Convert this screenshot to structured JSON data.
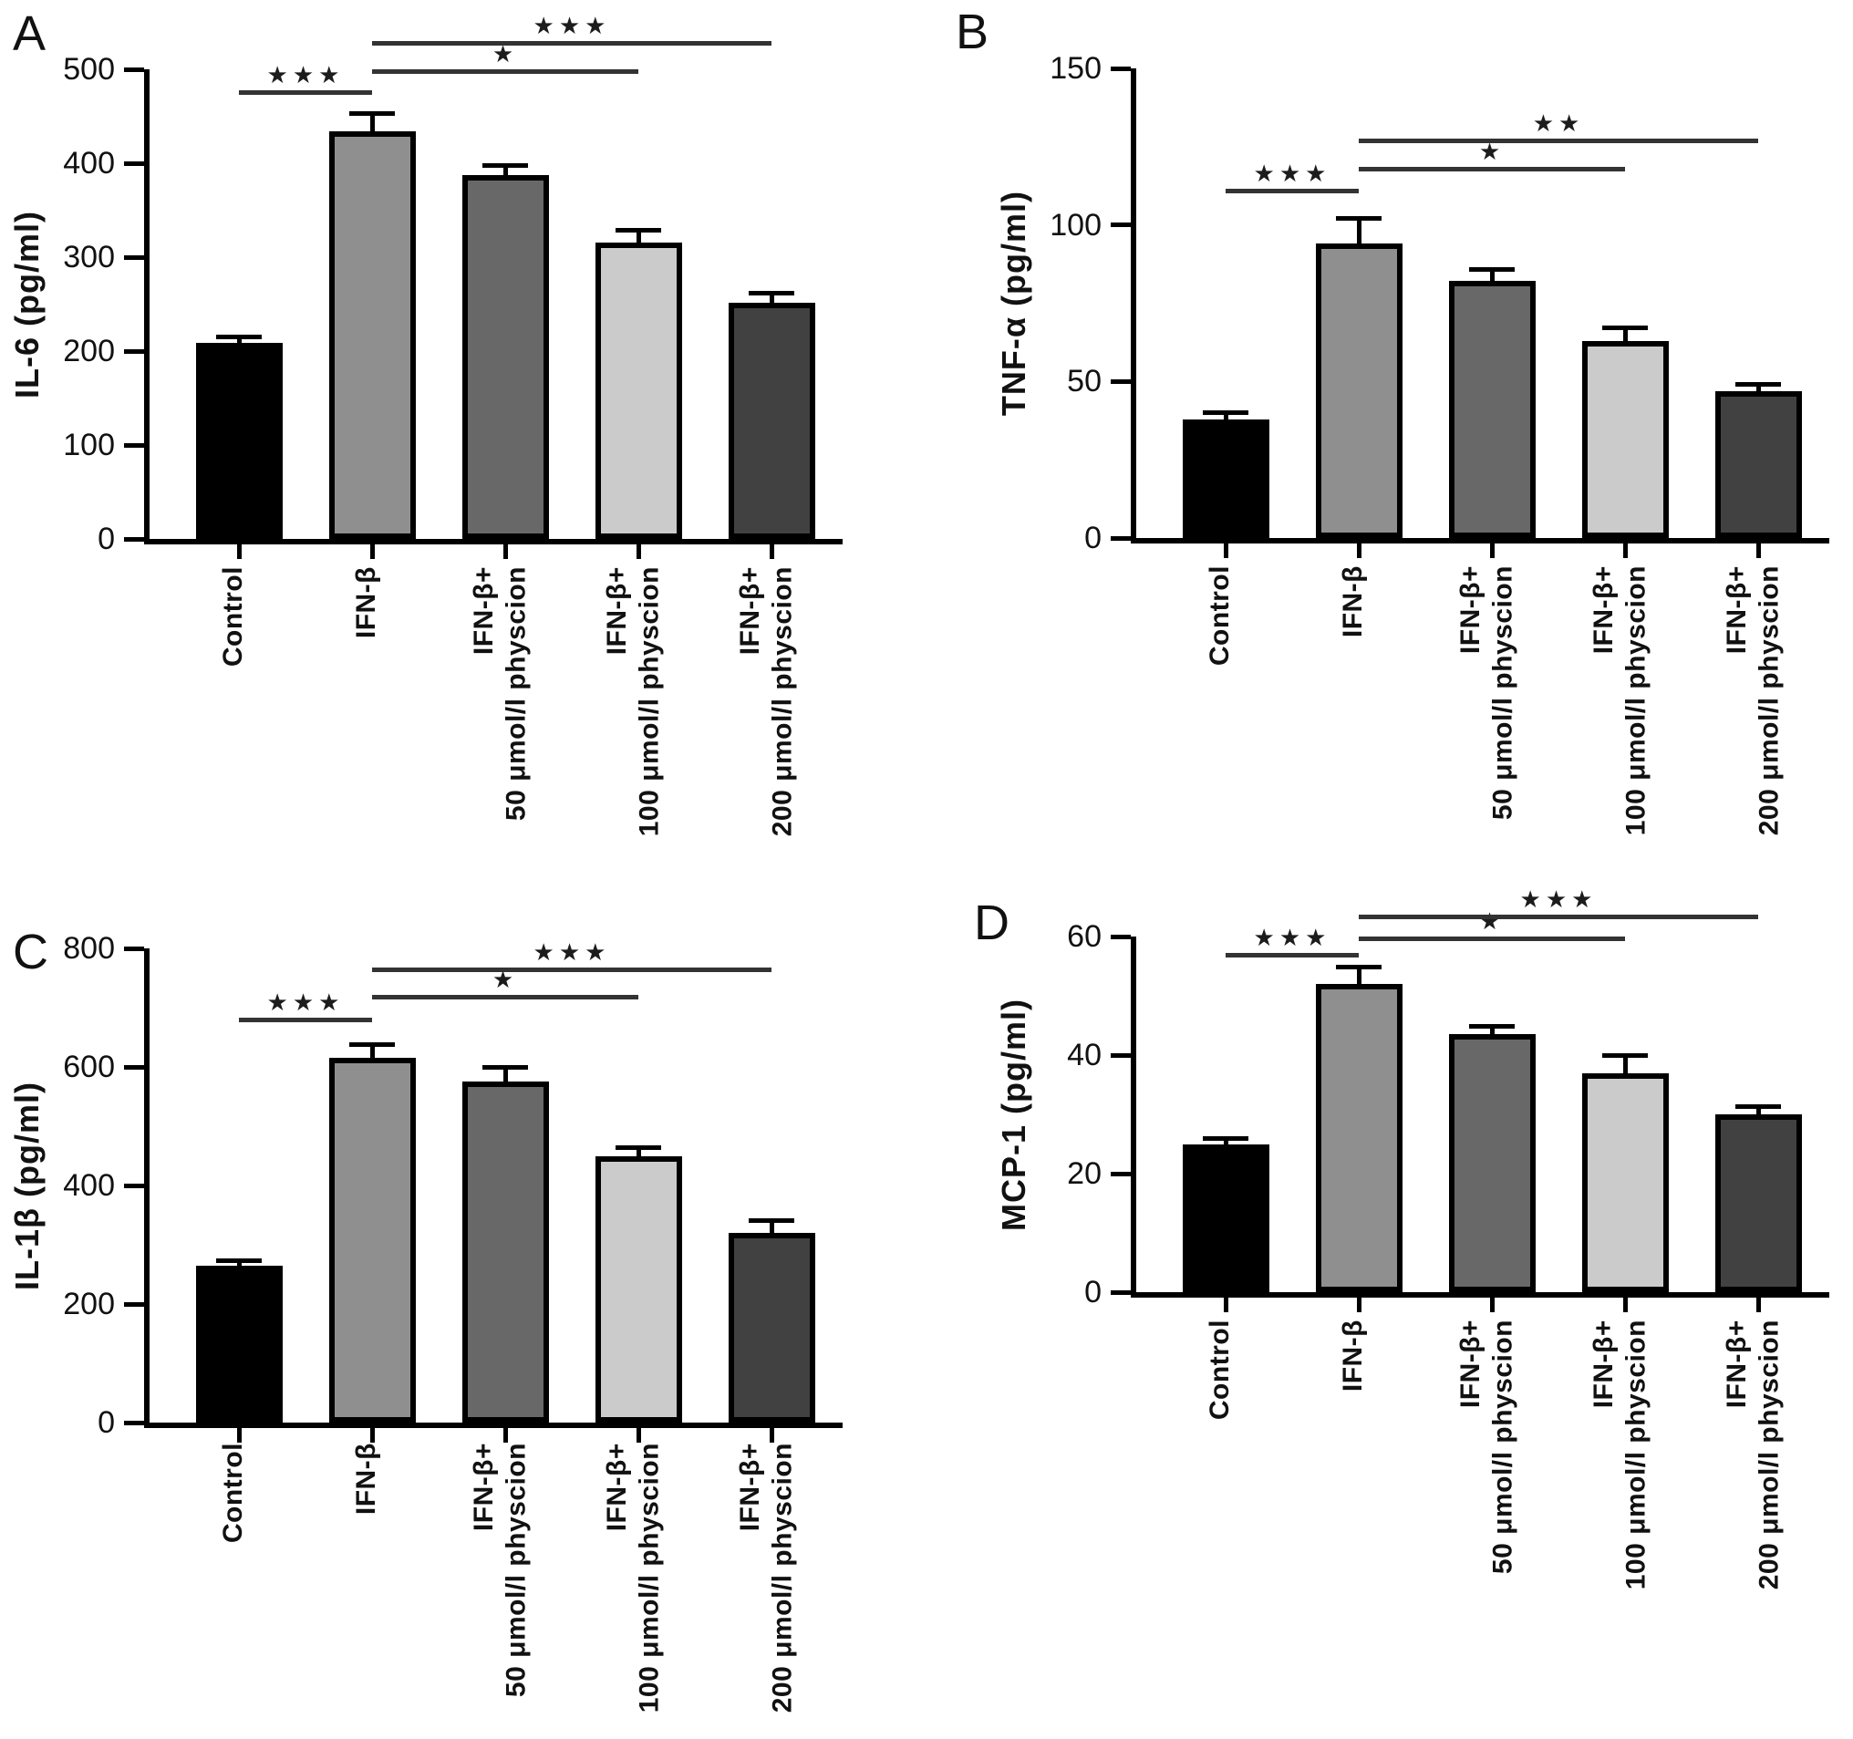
{
  "chart_data": [
    {
      "panel": "A",
      "type": "bar",
      "ylabel": "IL-6 (pg/ml)",
      "ylim": [
        0,
        500
      ],
      "yticks": [
        0,
        100,
        200,
        300,
        400,
        500
      ],
      "categories": [
        [
          "Control"
        ],
        [
          "IFN-β"
        ],
        [
          "IFN-β+",
          "50 μmol/l physcion"
        ],
        [
          "IFN-β+",
          "100 μmol/l physcion"
        ],
        [
          "IFN-β+",
          "200 μmol/l physcion"
        ]
      ],
      "values": [
        209,
        434,
        387,
        316,
        251
      ],
      "errors": [
        6,
        18,
        10,
        12,
        10
      ],
      "bar_colors": [
        "#000000",
        "#8f8f8f",
        "#686868",
        "#cbcbcb",
        "#414141"
      ],
      "significance": [
        {
          "from": 0,
          "to": 1,
          "stars": "★★★",
          "y": 473
        },
        {
          "from": 1,
          "to": 3,
          "stars": "★",
          "y": 495
        },
        {
          "from": 1,
          "to": 4,
          "stars": "★★★",
          "y": 525
        }
      ]
    },
    {
      "panel": "B",
      "type": "bar",
      "ylabel": "TNF-α (pg/ml)",
      "ylim": [
        0,
        150
      ],
      "yticks": [
        0,
        50,
        100,
        150
      ],
      "categories": [
        [
          "Control"
        ],
        [
          "IFN-β"
        ],
        [
          "IFN-β+",
          "50 μmol/l physcion"
        ],
        [
          "IFN-β+",
          "100 μmol/l physcion"
        ],
        [
          "IFN-β+",
          "200 μmol/l physcion"
        ]
      ],
      "values": [
        38,
        94,
        82,
        63,
        47
      ],
      "errors": [
        2,
        8,
        3.5,
        4,
        2
      ],
      "bar_colors": [
        "#000000",
        "#8f8f8f",
        "#686868",
        "#cbcbcb",
        "#414141"
      ],
      "significance": [
        {
          "from": 0,
          "to": 1,
          "stars": "★★★",
          "y": 110
        },
        {
          "from": 1,
          "to": 3,
          "stars": "★",
          "y": 117
        },
        {
          "from": 1,
          "to": 4,
          "stars": "★★",
          "y": 126
        }
      ]
    },
    {
      "panel": "C",
      "type": "bar",
      "ylabel": "IL-1β (pg/ml)",
      "ylim": [
        0,
        800
      ],
      "yticks": [
        0,
        200,
        400,
        600,
        800
      ],
      "categories": [
        [
          "Control"
        ],
        [
          "IFN-β"
        ],
        [
          "IFN-β+",
          "50 μmol/l physcion"
        ],
        [
          "IFN-β+",
          "100 μmol/l physcion"
        ],
        [
          "IFN-β+",
          "200 μmol/l physcion"
        ]
      ],
      "values": [
        265,
        615,
        575,
        450,
        320
      ],
      "errors": [
        8,
        22,
        23,
        13,
        20
      ],
      "bar_colors": [
        "#000000",
        "#8f8f8f",
        "#686868",
        "#cbcbcb",
        "#414141"
      ],
      "significance": [
        {
          "from": 0,
          "to": 1,
          "stars": "★★★",
          "y": 675
        },
        {
          "from": 1,
          "to": 3,
          "stars": "★",
          "y": 714
        },
        {
          "from": 1,
          "to": 4,
          "stars": "★★★",
          "y": 760
        }
      ]
    },
    {
      "panel": "D",
      "type": "bar",
      "ylabel": "MCP-1 (pg/ml)",
      "ylim": [
        0,
        60
      ],
      "yticks": [
        0,
        20,
        40,
        60
      ],
      "categories": [
        [
          "Control"
        ],
        [
          "IFN-β"
        ],
        [
          "IFN-β+",
          "50 μmol/l physcion"
        ],
        [
          "IFN-β+",
          "100 μmol/l physcion"
        ],
        [
          "IFN-β+",
          "200 μmol/l physcion"
        ]
      ],
      "values": [
        25,
        52,
        43.5,
        37,
        30
      ],
      "errors": [
        0.8,
        2.8,
        1.3,
        2.8,
        1.2
      ],
      "bar_colors": [
        "#000000",
        "#8f8f8f",
        "#686868",
        "#cbcbcb",
        "#414141"
      ],
      "significance": [
        {
          "from": 0,
          "to": 1,
          "stars": "★★★",
          "y": 56.5
        },
        {
          "from": 1,
          "to": 3,
          "stars": "★",
          "y": 59.3
        },
        {
          "from": 1,
          "to": 4,
          "stars": "★★★",
          "y": 63
        }
      ]
    }
  ]
}
